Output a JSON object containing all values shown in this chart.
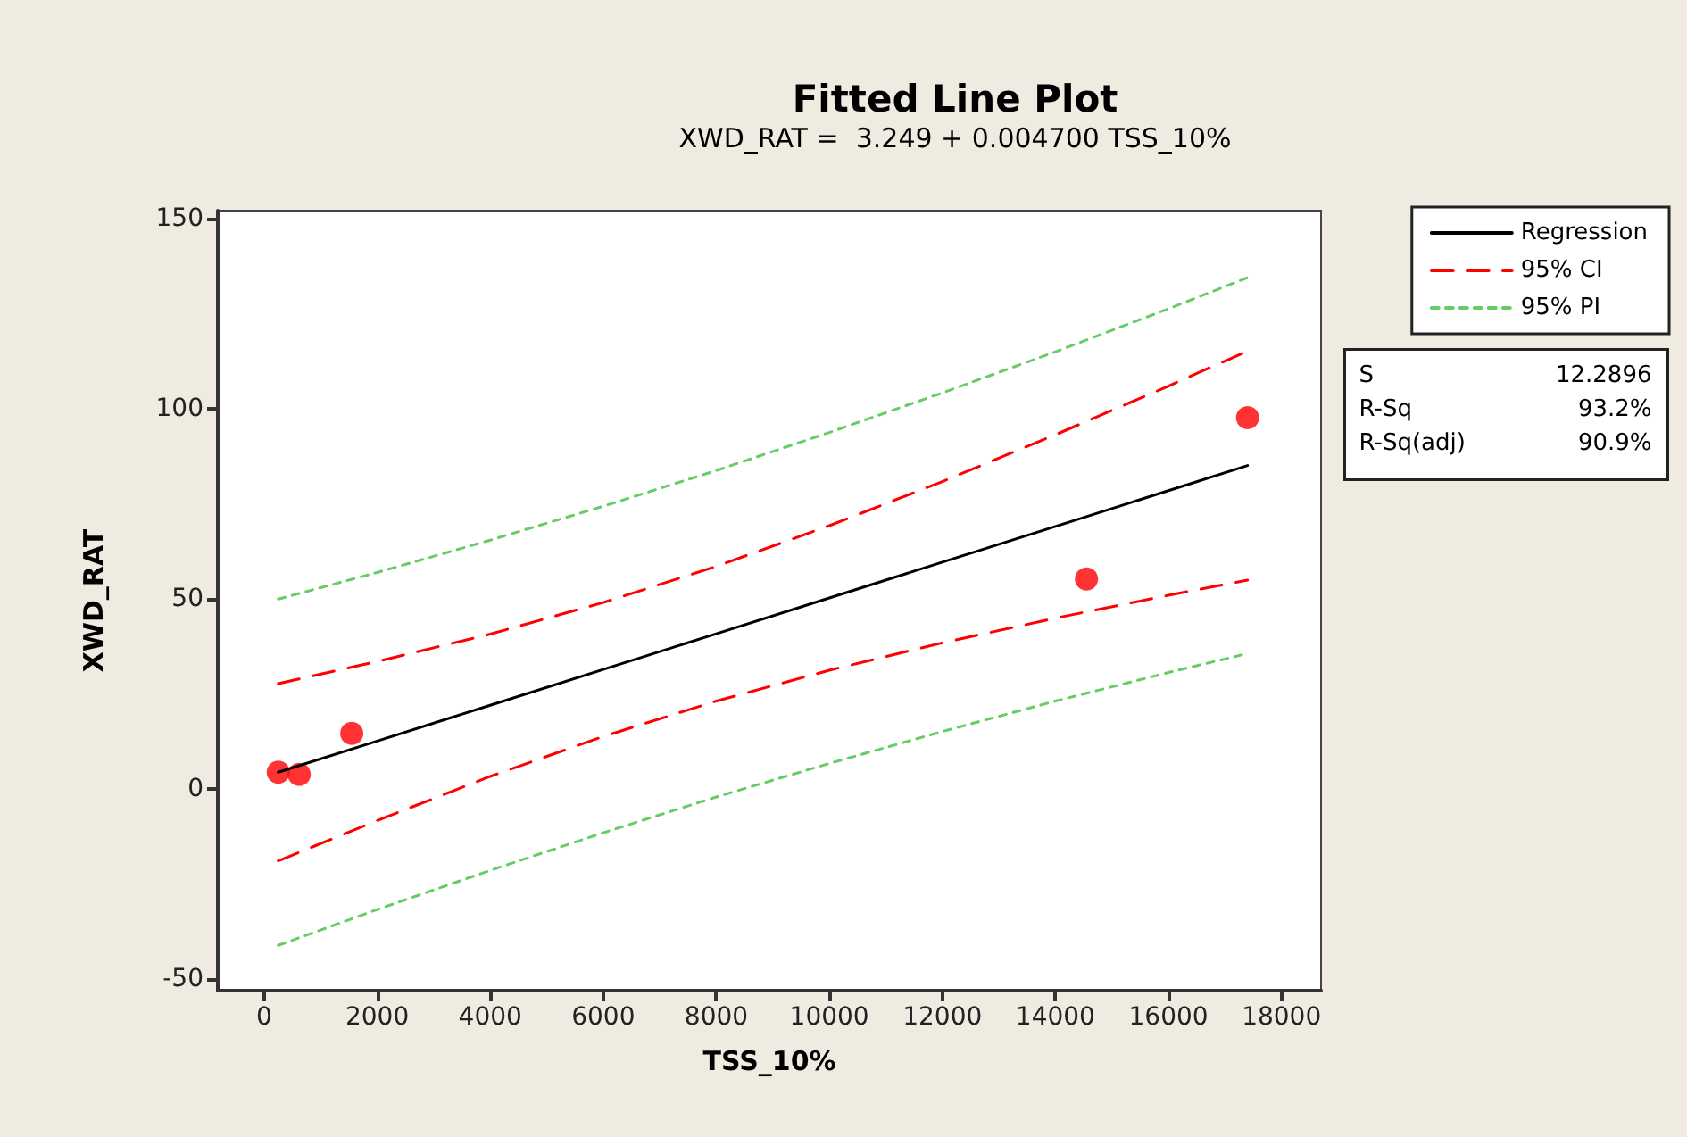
{
  "chart_data": {
    "type": "line",
    "title": "Fitted Line Plot",
    "subtitle": "XWD_RAT =  3.249 + 0.004700 TSS_10%",
    "xlabel": "TSS_10%",
    "ylabel": "XWD_RAT",
    "xlim": [
      -820,
      18700
    ],
    "xticks": [
      0,
      2000,
      4000,
      6000,
      8000,
      10000,
      12000,
      14000,
      16000,
      18000
    ],
    "ylim": [
      -53,
      152
    ],
    "yticks": [
      -50,
      0,
      50,
      100,
      150
    ],
    "grid": false,
    "legend": "top right",
    "annotations": [
      "S",
      "12.2896",
      "R-Sq",
      "93.2%",
      "R-Sq(adj)",
      "90.9%"
    ],
    "series": [
      {
        "type": "scatter",
        "marker": "circle",
        "color": "#ff0000",
        "x": [
          250,
          620,
          1550,
          14550,
          17400
        ],
        "values": [
          4.4,
          3.8,
          14.6,
          55.2,
          97.6
        ]
      },
      {
        "name": "Regression",
        "marker": "none",
        "line_style": "solid",
        "color": "#000000",
        "x": [
          250,
          2000,
          4000,
          6000,
          8000,
          10000,
          12000,
          14000,
          16000,
          17400
        ],
        "values": [
          4.4,
          12.6,
          22.0,
          31.4,
          40.8,
          50.2,
          59.6,
          69.0,
          78.4,
          85.0
        ]
      },
      {
        "name": "95% CI",
        "marker": "none",
        "line_style": "dashed",
        "color": "#ff0000",
        "x": [
          250,
          2000,
          4000,
          6000,
          8000,
          10000,
          12000,
          14000,
          16000,
          17400
        ],
        "values": [
          27.7,
          33.5,
          40.7,
          49.0,
          58.5,
          69.2,
          80.8,
          93.1,
          105.9,
          115.1
        ]
      },
      {
        "marker": "none",
        "line_style": "dashed",
        "color": "#ff0000",
        "x": [
          250,
          2000,
          4000,
          6000,
          8000,
          10000,
          12000,
          14000,
          16000,
          17400
        ],
        "values": [
          -18.9,
          -8.3,
          3.3,
          13.8,
          23.1,
          31.2,
          38.4,
          44.9,
          50.9,
          54.9
        ]
      },
      {
        "name": "95% PI",
        "marker": "none",
        "line_style": "dotted",
        "color": "#66cc66",
        "x": [
          250,
          2000,
          4000,
          6000,
          8000,
          10000,
          12000,
          14000,
          16000,
          17400
        ],
        "values": [
          49.9,
          56.9,
          65.4,
          74.3,
          83.7,
          93.7,
          104.1,
          114.9,
          126.2,
          134.4
        ]
      },
      {
        "marker": "none",
        "line_style": "dotted",
        "color": "#66cc66",
        "x": [
          250,
          2000,
          4000,
          6000,
          8000,
          10000,
          12000,
          14000,
          16000,
          17400
        ],
        "values": [
          -41.1,
          -31.7,
          -21.4,
          -11.5,
          -2.1,
          6.7,
          15.1,
          23.1,
          30.6,
          35.6
        ]
      }
    ]
  }
}
